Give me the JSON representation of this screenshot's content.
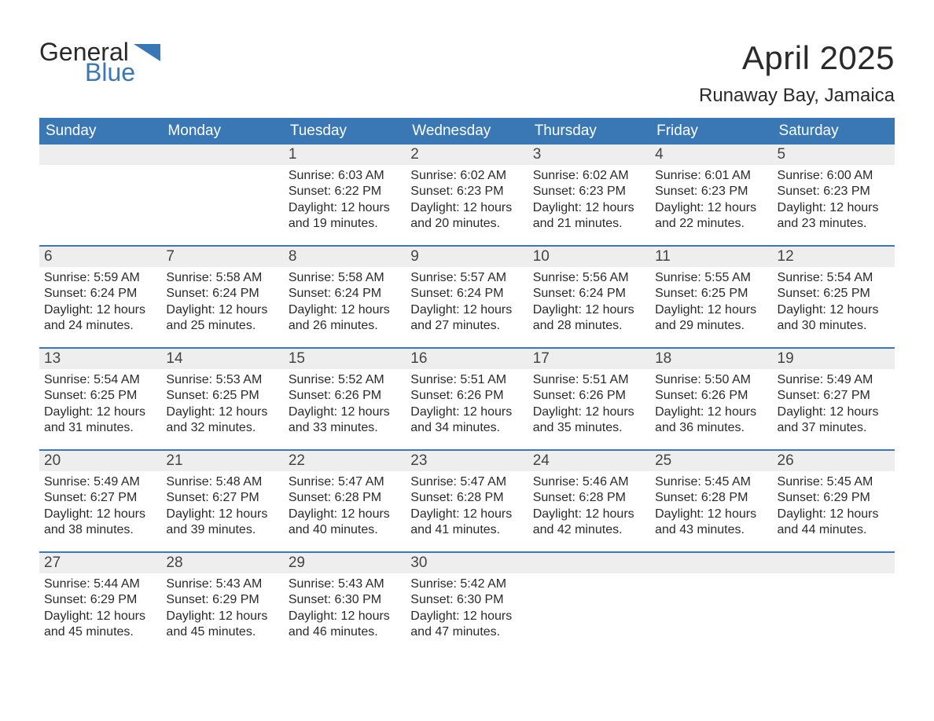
{
  "logo": {
    "word1": "General",
    "word2": "Blue"
  },
  "title": "April 2025",
  "location": "Runaway Bay, Jamaica",
  "colors": {
    "brand_blue": "#3a78b5",
    "header_text": "#ffffff",
    "daynum_bg": "#eeeeee",
    "body_text": "#2a2a2a",
    "page_bg": "#ffffff"
  },
  "typography": {
    "title_fontsize": 42,
    "location_fontsize": 24,
    "weekday_fontsize": 19,
    "daynum_fontsize": 19,
    "body_fontsize": 16
  },
  "weekdays": [
    "Sunday",
    "Monday",
    "Tuesday",
    "Wednesday",
    "Thursday",
    "Friday",
    "Saturday"
  ],
  "labels": {
    "sunrise": "Sunrise:",
    "sunset": "Sunset:",
    "daylight": "Daylight:"
  },
  "weeks": [
    [
      {
        "blank": true
      },
      {
        "blank": true
      },
      {
        "day": "1",
        "sunrise": "6:03 AM",
        "sunset": "6:22 PM",
        "daylight": "12 hours and 19 minutes."
      },
      {
        "day": "2",
        "sunrise": "6:02 AM",
        "sunset": "6:23 PM",
        "daylight": "12 hours and 20 minutes."
      },
      {
        "day": "3",
        "sunrise": "6:02 AM",
        "sunset": "6:23 PM",
        "daylight": "12 hours and 21 minutes."
      },
      {
        "day": "4",
        "sunrise": "6:01 AM",
        "sunset": "6:23 PM",
        "daylight": "12 hours and 22 minutes."
      },
      {
        "day": "5",
        "sunrise": "6:00 AM",
        "sunset": "6:23 PM",
        "daylight": "12 hours and 23 minutes."
      }
    ],
    [
      {
        "day": "6",
        "sunrise": "5:59 AM",
        "sunset": "6:24 PM",
        "daylight": "12 hours and 24 minutes."
      },
      {
        "day": "7",
        "sunrise": "5:58 AM",
        "sunset": "6:24 PM",
        "daylight": "12 hours and 25 minutes."
      },
      {
        "day": "8",
        "sunrise": "5:58 AM",
        "sunset": "6:24 PM",
        "daylight": "12 hours and 26 minutes."
      },
      {
        "day": "9",
        "sunrise": "5:57 AM",
        "sunset": "6:24 PM",
        "daylight": "12 hours and 27 minutes."
      },
      {
        "day": "10",
        "sunrise": "5:56 AM",
        "sunset": "6:24 PM",
        "daylight": "12 hours and 28 minutes."
      },
      {
        "day": "11",
        "sunrise": "5:55 AM",
        "sunset": "6:25 PM",
        "daylight": "12 hours and 29 minutes."
      },
      {
        "day": "12",
        "sunrise": "5:54 AM",
        "sunset": "6:25 PM",
        "daylight": "12 hours and 30 minutes."
      }
    ],
    [
      {
        "day": "13",
        "sunrise": "5:54 AM",
        "sunset": "6:25 PM",
        "daylight": "12 hours and 31 minutes."
      },
      {
        "day": "14",
        "sunrise": "5:53 AM",
        "sunset": "6:25 PM",
        "daylight": "12 hours and 32 minutes."
      },
      {
        "day": "15",
        "sunrise": "5:52 AM",
        "sunset": "6:26 PM",
        "daylight": "12 hours and 33 minutes."
      },
      {
        "day": "16",
        "sunrise": "5:51 AM",
        "sunset": "6:26 PM",
        "daylight": "12 hours and 34 minutes."
      },
      {
        "day": "17",
        "sunrise": "5:51 AM",
        "sunset": "6:26 PM",
        "daylight": "12 hours and 35 minutes."
      },
      {
        "day": "18",
        "sunrise": "5:50 AM",
        "sunset": "6:26 PM",
        "daylight": "12 hours and 36 minutes."
      },
      {
        "day": "19",
        "sunrise": "5:49 AM",
        "sunset": "6:27 PM",
        "daylight": "12 hours and 37 minutes."
      }
    ],
    [
      {
        "day": "20",
        "sunrise": "5:49 AM",
        "sunset": "6:27 PM",
        "daylight": "12 hours and 38 minutes."
      },
      {
        "day": "21",
        "sunrise": "5:48 AM",
        "sunset": "6:27 PM",
        "daylight": "12 hours and 39 minutes."
      },
      {
        "day": "22",
        "sunrise": "5:47 AM",
        "sunset": "6:28 PM",
        "daylight": "12 hours and 40 minutes."
      },
      {
        "day": "23",
        "sunrise": "5:47 AM",
        "sunset": "6:28 PM",
        "daylight": "12 hours and 41 minutes."
      },
      {
        "day": "24",
        "sunrise": "5:46 AM",
        "sunset": "6:28 PM",
        "daylight": "12 hours and 42 minutes."
      },
      {
        "day": "25",
        "sunrise": "5:45 AM",
        "sunset": "6:28 PM",
        "daylight": "12 hours and 43 minutes."
      },
      {
        "day": "26",
        "sunrise": "5:45 AM",
        "sunset": "6:29 PM",
        "daylight": "12 hours and 44 minutes."
      }
    ],
    [
      {
        "day": "27",
        "sunrise": "5:44 AM",
        "sunset": "6:29 PM",
        "daylight": "12 hours and 45 minutes."
      },
      {
        "day": "28",
        "sunrise": "5:43 AM",
        "sunset": "6:29 PM",
        "daylight": "12 hours and 45 minutes."
      },
      {
        "day": "29",
        "sunrise": "5:43 AM",
        "sunset": "6:30 PM",
        "daylight": "12 hours and 46 minutes."
      },
      {
        "day": "30",
        "sunrise": "5:42 AM",
        "sunset": "6:30 PM",
        "daylight": "12 hours and 47 minutes."
      },
      {
        "blank": true
      },
      {
        "blank": true
      },
      {
        "blank": true
      }
    ]
  ]
}
